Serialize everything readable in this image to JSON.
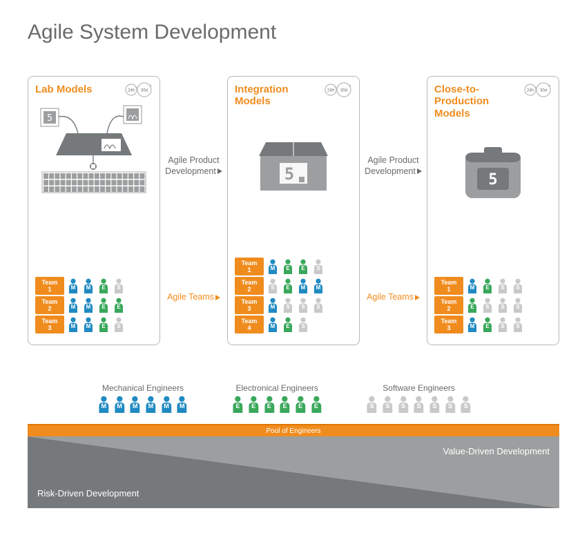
{
  "title": "Agile System Development",
  "colors": {
    "orange": "#f08c1e",
    "orange_dark": "#e07500",
    "gray_dark": "#76797b",
    "gray_mid": "#9c9e9f",
    "gray_light": "#b8b8b8",
    "blue": "#1f8ac2",
    "green": "#39a85b",
    "silver": "#c9c9c9",
    "text": "#6a6a6a",
    "white": "#ffffff"
  },
  "cycle": {
    "inner": "24h",
    "outer": "30d"
  },
  "mid_captions": {
    "top": "Agile Product\nDevelopment",
    "bottom": "Agile Teams"
  },
  "panels": [
    {
      "title": "Lab Models",
      "illustration": "lab",
      "teams": [
        {
          "label": "Team 1",
          "members": [
            "M",
            "M",
            "E",
            "S"
          ]
        },
        {
          "label": "Team 2",
          "members": [
            "M",
            "M",
            "E",
            "E"
          ]
        },
        {
          "label": "Team 3",
          "members": [
            "M",
            "M",
            "E",
            "S"
          ]
        }
      ]
    },
    {
      "title": "Integration\nModels",
      "illustration": "integration",
      "teams": [
        {
          "label": "Team 1",
          "members": [
            "M",
            "E",
            "E",
            "S"
          ]
        },
        {
          "label": "Team 2",
          "members": [
            "S",
            "E",
            "M",
            "M"
          ]
        },
        {
          "label": "Team 3",
          "members": [
            "M",
            "S",
            "S",
            "S"
          ]
        },
        {
          "label": "Team 4",
          "members": [
            "M",
            "E",
            "S"
          ]
        }
      ]
    },
    {
      "title": "Close-to-\nProduction\nModels",
      "illustration": "production",
      "teams": [
        {
          "label": "Team 1",
          "members": [
            "M",
            "E",
            "S",
            "S"
          ]
        },
        {
          "label": "Team 2",
          "members": [
            "E",
            "S",
            "S",
            "S"
          ]
        },
        {
          "label": "Team 3",
          "members": [
            "M",
            "E",
            "S",
            "S"
          ]
        }
      ]
    }
  ],
  "legend": [
    {
      "label": "Mechanical Engineers",
      "letter": "M",
      "count": 6
    },
    {
      "label": "Electronical Engineers",
      "letter": "E",
      "count": 6
    },
    {
      "label": "Software Engineers",
      "letter": "S",
      "count": 7
    }
  ],
  "pool_label": "Pool of Engineers",
  "triangle": {
    "left_label": "Risk-Driven Development",
    "right_label": "Value-Driven Development"
  },
  "role_colors": {
    "M": "#1f8ac2",
    "E": "#39a85b",
    "S": "#c9c9c9"
  },
  "illustration_number": "5"
}
